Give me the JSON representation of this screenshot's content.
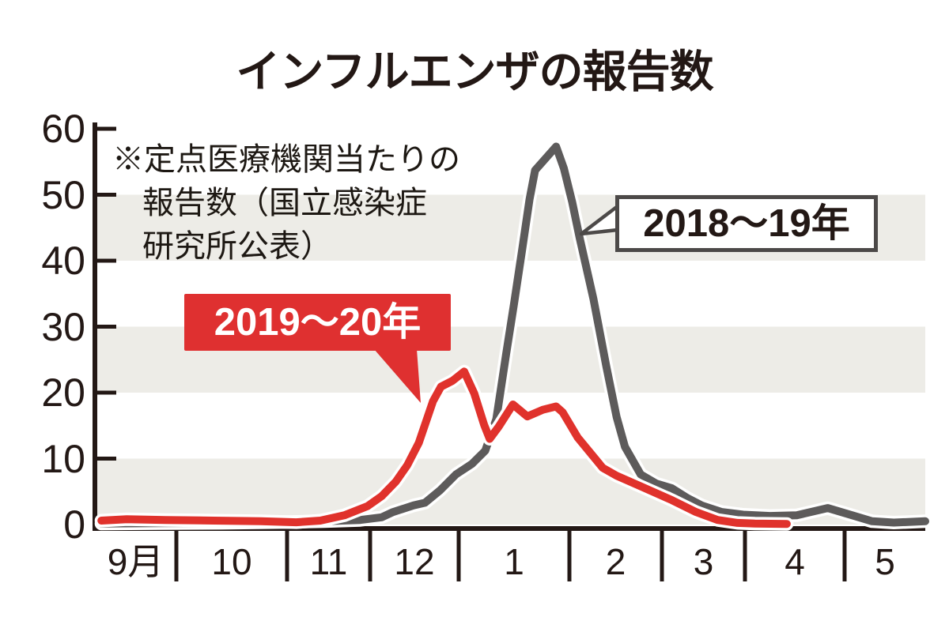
{
  "title": "インフルエンザの報告数",
  "note": {
    "line1": "※定点医療機関当たりの",
    "line2": "報告数（国立感染症",
    "line3": "研究所公表）"
  },
  "legend": {
    "gray": {
      "label": "2018〜19年"
    },
    "red": {
      "label": "2019〜20年"
    }
  },
  "colors": {
    "red_line": "#e0322c",
    "gray_line": "#5d5b5b",
    "band": "#edece7",
    "axis": "#231815",
    "legend_red_bg": "#df3030",
    "legend_gray_border": "#4c4948",
    "casing": "#ffffff"
  },
  "chart_data": {
    "type": "line",
    "title": "インフルエンザの報告数",
    "note": "※定点医療機関当たりの報告数（国立感染症研究所公表）",
    "x_axis": {
      "unit": "month",
      "tick_labels": [
        "9月",
        "10",
        "11",
        "12",
        "1",
        "2",
        "3",
        "4",
        "5"
      ]
    },
    "y_axis": {
      "ticks": [
        0,
        10,
        20,
        30,
        40,
        50,
        60
      ],
      "range": [
        0,
        60
      ],
      "shaded_bands": [
        [
          0,
          10
        ],
        [
          20,
          30
        ],
        [
          40,
          50
        ]
      ]
    },
    "legend_position": "annotated-callouts",
    "grid": false,
    "series": [
      {
        "name": "2018〜19年",
        "color": "#5d5b5b",
        "points": [
          [
            0.08,
            0.15
          ],
          [
            0.78,
            0.2
          ],
          [
            1.41,
            0.25
          ],
          [
            2.0,
            0.4
          ],
          [
            2.45,
            0.5
          ],
          [
            2.88,
            0.7
          ],
          [
            3.13,
            1.1
          ],
          [
            3.26,
            1.9
          ],
          [
            3.49,
            2.9
          ],
          [
            3.62,
            3.3
          ],
          [
            3.79,
            5.2
          ],
          [
            3.97,
            7.6
          ],
          [
            4.12,
            9.2
          ],
          [
            4.24,
            11.2
          ],
          [
            4.34,
            16.0
          ],
          [
            4.43,
            26.0
          ],
          [
            4.5,
            33.5
          ],
          [
            4.57,
            41.3
          ],
          [
            4.64,
            49.3
          ],
          [
            4.69,
            53.7
          ],
          [
            4.88,
            57.3
          ],
          [
            4.95,
            54.0
          ],
          [
            5.03,
            48.9
          ],
          [
            5.11,
            43.5
          ],
          [
            5.26,
            34.2
          ],
          [
            5.4,
            23.9
          ],
          [
            5.51,
            16.3
          ],
          [
            5.6,
            11.8
          ],
          [
            5.77,
            7.6
          ],
          [
            5.94,
            6.2
          ],
          [
            6.12,
            5.5
          ],
          [
            6.31,
            4.0
          ],
          [
            6.48,
            2.9
          ],
          [
            6.72,
            1.9
          ],
          [
            6.98,
            1.5
          ],
          [
            7.25,
            1.3
          ],
          [
            7.52,
            1.4
          ],
          [
            7.83,
            2.5
          ],
          [
            8.12,
            1.3
          ],
          [
            8.34,
            0.5
          ],
          [
            8.61,
            0.3
          ],
          [
            9.0,
            0.5
          ]
        ]
      },
      {
        "name": "2019〜20年",
        "color": "#e0322c",
        "points": [
          [
            0.08,
            0.6
          ],
          [
            0.39,
            0.8
          ],
          [
            0.87,
            0.7
          ],
          [
            1.34,
            0.6
          ],
          [
            1.76,
            0.5
          ],
          [
            2.11,
            0.35
          ],
          [
            2.4,
            0.6
          ],
          [
            2.69,
            1.4
          ],
          [
            2.97,
            2.8
          ],
          [
            3.13,
            4.3
          ],
          [
            3.29,
            6.5
          ],
          [
            3.42,
            9.0
          ],
          [
            3.55,
            12.4
          ],
          [
            3.71,
            18.7
          ],
          [
            3.8,
            20.9
          ],
          [
            3.93,
            21.8
          ],
          [
            4.05,
            23.2
          ],
          [
            4.14,
            19.9
          ],
          [
            4.23,
            15.1
          ],
          [
            4.28,
            13.0
          ],
          [
            4.36,
            14.8
          ],
          [
            4.49,
            18.2
          ],
          [
            4.62,
            16.4
          ],
          [
            4.76,
            17.4
          ],
          [
            4.88,
            17.9
          ],
          [
            4.94,
            17.0
          ],
          [
            5.09,
            13.2
          ],
          [
            5.36,
            8.6
          ],
          [
            5.51,
            7.4
          ],
          [
            5.77,
            5.8
          ],
          [
            6.12,
            3.7
          ],
          [
            6.41,
            1.9
          ],
          [
            6.67,
            0.7
          ],
          [
            6.91,
            0.25
          ],
          [
            7.1,
            0.15
          ],
          [
            7.42,
            0.1
          ]
        ]
      }
    ]
  }
}
